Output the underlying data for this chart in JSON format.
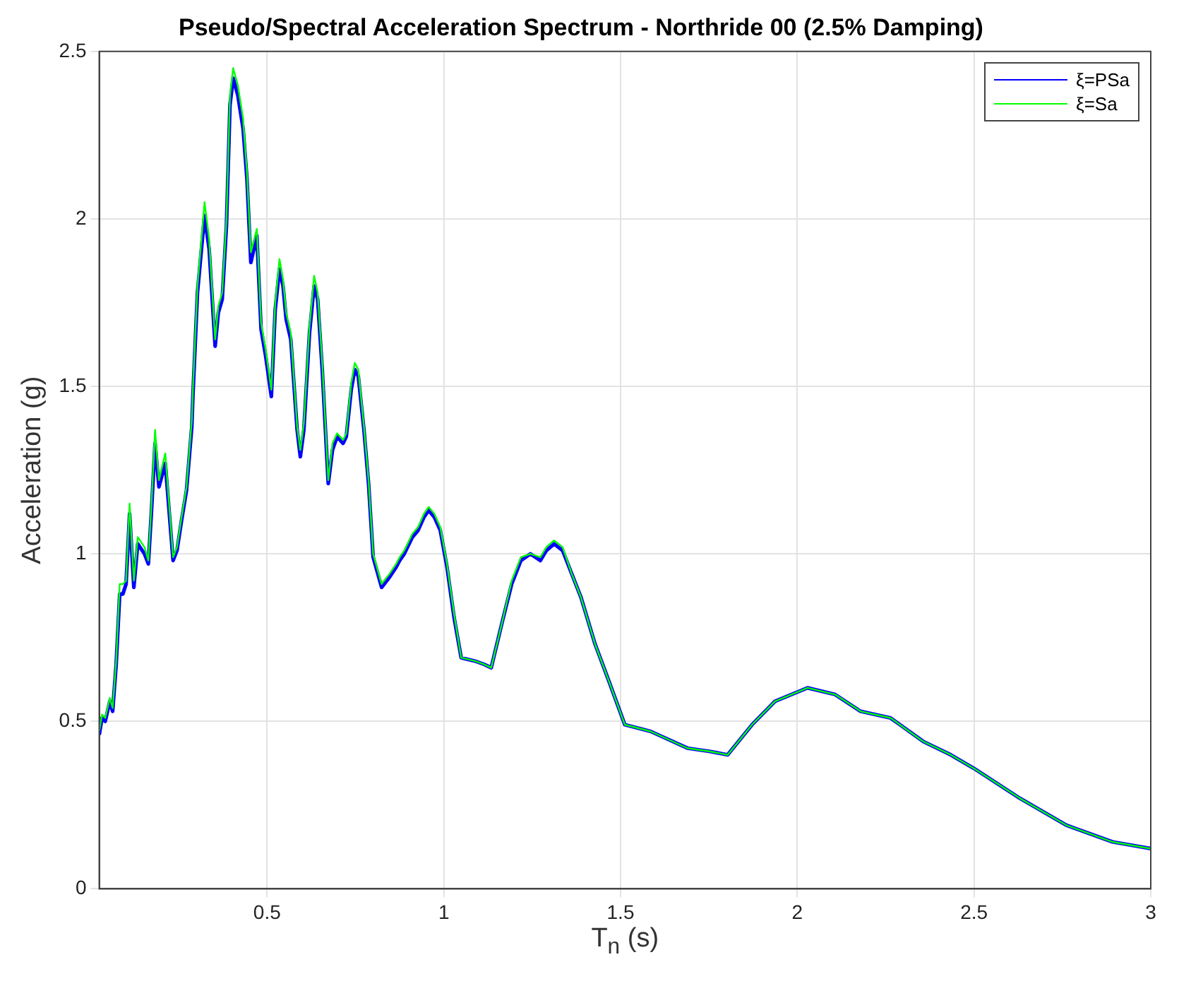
{
  "chart_data": {
    "type": "line",
    "title": "Pseudo/Spectral Acceleration Spectrum - Northride 00 (2.5% Damping)",
    "xlabel": "T$_{n}$ (s)",
    "ylabel": "Acceleration (g)",
    "x": [
      0.025,
      0.033,
      0.042,
      0.055,
      0.063,
      0.073,
      0.083,
      0.092,
      0.101,
      0.111,
      0.123,
      0.134,
      0.153,
      0.164,
      0.173,
      0.183,
      0.194,
      0.212,
      0.234,
      0.245,
      0.258,
      0.272,
      0.287,
      0.29,
      0.303,
      0.323,
      0.336,
      0.353,
      0.362,
      0.373,
      0.385,
      0.395,
      0.404,
      0.417,
      0.432,
      0.443,
      0.454,
      0.471,
      0.483,
      0.496,
      0.512,
      0.523,
      0.535,
      0.545,
      0.554,
      0.567,
      0.585,
      0.594,
      0.604,
      0.62,
      0.633,
      0.643,
      0.656,
      0.673,
      0.685,
      0.698,
      0.715,
      0.724,
      0.738,
      0.748,
      0.758,
      0.774,
      0.787,
      0.8,
      0.824,
      0.846,
      0.865,
      0.875,
      0.888,
      0.911,
      0.927,
      0.944,
      0.957,
      0.973,
      0.99,
      1.009,
      1.029,
      1.049,
      1.088,
      1.114,
      1.134,
      1.166,
      1.192,
      1.218,
      1.245,
      1.273,
      1.29,
      1.312,
      1.336,
      1.362,
      1.388,
      1.428,
      1.467,
      1.512,
      1.585,
      1.689,
      1.754,
      1.803,
      1.872,
      1.937,
      2.029,
      2.107,
      2.179,
      2.264,
      2.356,
      2.434,
      2.499,
      2.63,
      2.761,
      2.892,
      3.0
    ],
    "series": [
      {
        "name": "ξ=PSa",
        "color": "#0000ff",
        "values": [
          0.46,
          0.51,
          0.5,
          0.56,
          0.53,
          0.67,
          0.88,
          0.88,
          0.91,
          1.12,
          0.9,
          1.03,
          1.0,
          0.97,
          1.13,
          1.33,
          1.2,
          1.27,
          0.98,
          1.01,
          1.1,
          1.19,
          1.38,
          1.47,
          1.78,
          2.01,
          1.91,
          1.62,
          1.72,
          1.76,
          1.98,
          2.34,
          2.42,
          2.37,
          2.27,
          2.12,
          1.87,
          1.95,
          1.67,
          1.59,
          1.47,
          1.73,
          1.85,
          1.8,
          1.7,
          1.64,
          1.37,
          1.29,
          1.37,
          1.66,
          1.8,
          1.76,
          1.55,
          1.21,
          1.31,
          1.35,
          1.33,
          1.35,
          1.49,
          1.55,
          1.53,
          1.37,
          1.21,
          0.99,
          0.9,
          0.93,
          0.96,
          0.98,
          1.0,
          1.05,
          1.07,
          1.11,
          1.13,
          1.11,
          1.07,
          0.96,
          0.81,
          0.69,
          0.68,
          0.67,
          0.66,
          0.8,
          0.91,
          0.98,
          1.0,
          0.98,
          1.01,
          1.03,
          1.01,
          0.94,
          0.87,
          0.73,
          0.62,
          0.49,
          0.47,
          0.42,
          0.41,
          0.4,
          0.49,
          0.56,
          0.6,
          0.58,
          0.53,
          0.51,
          0.44,
          0.4,
          0.36,
          0.27,
          0.19,
          0.14,
          0.12
        ]
      },
      {
        "name": "ξ=Sa",
        "color": "#00ff00",
        "values": [
          0.47,
          0.52,
          0.51,
          0.57,
          0.54,
          0.68,
          0.91,
          0.91,
          0.92,
          1.15,
          0.92,
          1.05,
          1.02,
          0.98,
          1.15,
          1.37,
          1.22,
          1.3,
          0.99,
          1.02,
          1.11,
          1.2,
          1.4,
          1.49,
          1.8,
          2.05,
          1.94,
          1.64,
          1.74,
          1.78,
          2.0,
          2.37,
          2.45,
          2.4,
          2.3,
          2.14,
          1.9,
          1.97,
          1.69,
          1.61,
          1.49,
          1.75,
          1.88,
          1.82,
          1.72,
          1.66,
          1.38,
          1.31,
          1.39,
          1.68,
          1.83,
          1.78,
          1.57,
          1.22,
          1.33,
          1.36,
          1.34,
          1.36,
          1.51,
          1.57,
          1.55,
          1.38,
          1.22,
          1.0,
          0.91,
          0.94,
          0.97,
          0.99,
          1.01,
          1.06,
          1.08,
          1.12,
          1.14,
          1.12,
          1.08,
          0.97,
          0.82,
          0.69,
          0.68,
          0.67,
          0.66,
          0.8,
          0.92,
          0.99,
          1.0,
          0.99,
          1.02,
          1.04,
          1.02,
          0.94,
          0.87,
          0.73,
          0.62,
          0.49,
          0.47,
          0.42,
          0.41,
          0.4,
          0.49,
          0.56,
          0.6,
          0.58,
          0.53,
          0.51,
          0.44,
          0.4,
          0.36,
          0.27,
          0.19,
          0.14,
          0.12
        ]
      }
    ],
    "xlim": [
      0.025,
      3
    ],
    "xticks": [
      0.5,
      1,
      1.5,
      2,
      2.5,
      3
    ],
    "ylim": [
      0,
      2.5
    ],
    "yticks": [
      0,
      0.5,
      1,
      1.5,
      2,
      2.5
    ],
    "grid": true,
    "legend": "top right",
    "marker": "none",
    "line_style": "solid"
  }
}
